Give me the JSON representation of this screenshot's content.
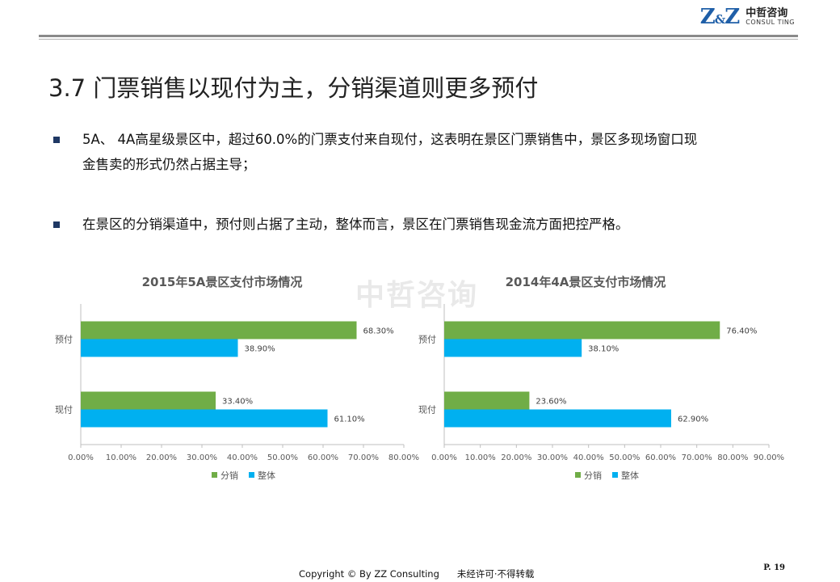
{
  "logo": {
    "mark_left": "Z",
    "mark_amp": "&",
    "mark_right": "Z",
    "name_cn": "中哲咨询",
    "name_en": "CONSUL TING"
  },
  "title": "3.7 门票销售以现付为主，分销渠道则更多预付",
  "bullets": [
    {
      "line1": "5A、 4A高星级景区中，超过60.0%的门票支付来自现付，这表明在景区门票销售中，景区多现场窗口现",
      "line2": "金售卖的形式仍然占据主导；"
    },
    {
      "line1": "在景区的分销渠道中，预付则占据了主动，整体而言，景区在门票销售现金流方面把控严格。"
    }
  ],
  "watermark": "中哲咨询",
  "footer": {
    "copyright": "Copyright © By  ZZ Consulting",
    "notice": "未经许可·不得转载",
    "page": "P. 19"
  },
  "colors": {
    "fenxiao": "#70ad47",
    "zhengti": "#00b0f0",
    "title_gray": "#595959",
    "axis": "#bfbfbf"
  },
  "chart_data": [
    {
      "type": "bar",
      "orientation": "horizontal",
      "title": "2015年5A景区支付市场情况",
      "categories": [
        "预付",
        "现付"
      ],
      "series": [
        {
          "name": "分销",
          "values": [
            68.3,
            33.4
          ],
          "labels": [
            "68.30%",
            "33.40%"
          ]
        },
        {
          "name": "整体",
          "values": [
            38.9,
            61.1
          ],
          "labels": [
            "38.90%",
            "61.10%"
          ]
        }
      ],
      "xlim": [
        0,
        80
      ],
      "xticks": [
        "0.00%",
        "10.00%",
        "20.00%",
        "30.00%",
        "40.00%",
        "50.00%",
        "60.00%",
        "70.00%",
        "80.00%"
      ],
      "legend": "bottom",
      "grid": false
    },
    {
      "type": "bar",
      "orientation": "horizontal",
      "title": "2014年4A景区支付市场情况",
      "categories": [
        "预付",
        "现付"
      ],
      "series": [
        {
          "name": "分销",
          "values": [
            76.4,
            23.6
          ],
          "labels": [
            "76.40%",
            "23.60%"
          ]
        },
        {
          "name": "整体",
          "values": [
            38.1,
            62.9
          ],
          "labels": [
            "38.10%",
            "62.90%"
          ]
        }
      ],
      "xlim": [
        0,
        90
      ],
      "xticks": [
        "0.00%",
        "10.00%",
        "20.00%",
        "30.00%",
        "40.00%",
        "50.00%",
        "60.00%",
        "70.00%",
        "80.00%",
        "90.00%"
      ],
      "legend": "bottom",
      "grid": false
    }
  ]
}
